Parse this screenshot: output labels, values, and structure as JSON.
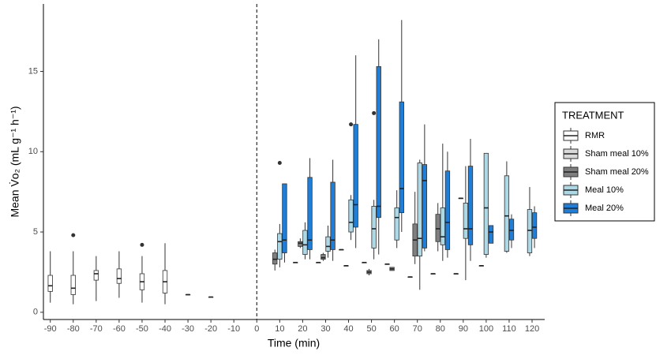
{
  "chart_data": {
    "type": "boxplot",
    "x_label": "Time (min)",
    "y_label": "Mean V̇o₂ (mL g⁻¹ h⁻¹)",
    "legend_title": "TREATMENT",
    "legend_position": "right",
    "xlim": [
      -93,
      125.5
    ],
    "ylim": [
      -0.45,
      19.2
    ],
    "xticks": [
      -90,
      -80,
      -70,
      -60,
      -50,
      -40,
      -30,
      -20,
      -10,
      0,
      10,
      20,
      30,
      40,
      50,
      60,
      70,
      80,
      90,
      100,
      110,
      120
    ],
    "yticks": [
      0,
      5,
      10,
      15
    ],
    "vline": 0,
    "series": [
      {
        "name": "RMR",
        "color": "#ffffff",
        "boxes": [
          {
            "x": -90,
            "min": 0.6,
            "q1": 1.3,
            "median": 1.65,
            "q3": 2.3,
            "max": 3.8
          },
          {
            "x": -80,
            "min": 0.5,
            "q1": 1.1,
            "median": 1.5,
            "q3": 2.3,
            "max": 3.8,
            "outliers": [
              4.8
            ]
          },
          {
            "x": -70,
            "min": 0.7,
            "q1": 2.0,
            "median": 2.4,
            "q3": 2.6,
            "max": 3.5
          },
          {
            "x": -60,
            "min": 0.9,
            "q1": 1.8,
            "median": 2.1,
            "q3": 2.7,
            "max": 3.8
          },
          {
            "x": -50,
            "min": 0.6,
            "q1": 1.4,
            "median": 1.9,
            "q3": 2.4,
            "max": 3.5,
            "outliers": [
              4.2
            ]
          },
          {
            "x": -40,
            "min": 0.5,
            "q1": 1.2,
            "median": 1.9,
            "q3": 2.6,
            "max": 4.3
          },
          {
            "x": -30,
            "min": 1.1,
            "q1": 1.1,
            "median": 1.1,
            "q3": 1.1,
            "max": 1.1
          },
          {
            "x": -20,
            "min": 0.95,
            "q1": 0.95,
            "median": 0.95,
            "q3": 0.95,
            "max": 0.95
          }
        ]
      },
      {
        "name": "Sham meal 10%",
        "color": "#d9d9d9",
        "boxes": [
          {
            "x": 20,
            "min": 3.1,
            "q1": 3.1,
            "median": 3.1,
            "q3": 3.1,
            "max": 3.1
          },
          {
            "x": 30,
            "min": 3.1,
            "q1": 3.1,
            "median": 3.1,
            "q3": 3.1,
            "max": 3.1
          },
          {
            "x": 40,
            "min": 3.9,
            "q1": 3.9,
            "median": 3.9,
            "q3": 3.9,
            "max": 3.9
          },
          {
            "x": 50,
            "min": 3.1,
            "q1": 3.1,
            "median": 3.1,
            "q3": 3.1,
            "max": 3.1
          },
          {
            "x": 60,
            "min": 3.0,
            "q1": 3.0,
            "median": 3.0,
            "q3": 3.0,
            "max": 3.0
          },
          {
            "x": 70,
            "min": 2.2,
            "q1": 2.2,
            "median": 2.2,
            "q3": 2.2,
            "max": 2.2
          },
          {
            "x": 80,
            "min": 2.4,
            "q1": 2.4,
            "median": 2.4,
            "q3": 2.4,
            "max": 2.4
          },
          {
            "x": 90,
            "min": 2.4,
            "q1": 2.4,
            "median": 2.4,
            "q3": 2.4,
            "max": 2.4
          },
          {
            "x": 100,
            "min": 2.9,
            "q1": 2.9,
            "median": 2.9,
            "q3": 2.9,
            "max": 2.9
          }
        ]
      },
      {
        "name": "Sham meal 20%",
        "color": "#7f7f7f",
        "boxes": [
          {
            "x": 10,
            "min": 2.6,
            "q1": 3.0,
            "median": 3.3,
            "q3": 3.7,
            "max": 3.9
          },
          {
            "x": 20,
            "min": 4.0,
            "q1": 4.1,
            "median": 4.3,
            "q3": 4.4,
            "max": 4.6
          },
          {
            "x": 30,
            "min": 3.2,
            "q1": 3.3,
            "median": 3.4,
            "q3": 3.6,
            "max": 3.7
          },
          {
            "x": 40,
            "min": 2.9,
            "q1": 2.9,
            "median": 2.9,
            "q3": 2.9,
            "max": 2.9
          },
          {
            "x": 50,
            "min": 2.3,
            "q1": 2.4,
            "median": 2.5,
            "q3": 2.6,
            "max": 2.7
          },
          {
            "x": 60,
            "min": 2.6,
            "q1": 2.6,
            "median": 2.7,
            "q3": 2.8,
            "max": 2.8
          },
          {
            "x": 70,
            "min": 3.0,
            "q1": 3.5,
            "median": 4.5,
            "q3": 5.5,
            "max": 7.5
          },
          {
            "x": 80,
            "min": 3.8,
            "q1": 4.4,
            "median": 5.2,
            "q3": 6.1,
            "max": 6.8
          },
          {
            "x": 90,
            "min": 7.1,
            "q1": 7.1,
            "median": 7.1,
            "q3": 7.1,
            "max": 7.1
          }
        ]
      },
      {
        "name": "Meal 10%",
        "color": "#add8e6",
        "boxes": [
          {
            "x": 10,
            "min": 2.8,
            "q1": 3.3,
            "median": 4.4,
            "q3": 4.9,
            "max": 5.5,
            "outliers": [
              9.3
            ]
          },
          {
            "x": 20,
            "min": 3.3,
            "q1": 3.6,
            "median": 4.2,
            "q3": 5.1,
            "max": 5.6
          },
          {
            "x": 30,
            "min": 3.4,
            "q1": 3.8,
            "median": 4.1,
            "q3": 4.7,
            "max": 5.4
          },
          {
            "x": 40,
            "min": 4.5,
            "q1": 5.0,
            "median": 5.6,
            "q3": 7.0,
            "max": 7.3,
            "outliers": [
              11.7
            ]
          },
          {
            "x": 50,
            "min": 3.3,
            "q1": 4.0,
            "median": 5.2,
            "q3": 6.6,
            "max": 7.0,
            "outliers": [
              12.4
            ]
          },
          {
            "x": 60,
            "min": 4.0,
            "q1": 4.5,
            "median": 5.9,
            "q3": 6.5,
            "max": 7.6
          },
          {
            "x": 70,
            "min": 1.4,
            "q1": 3.5,
            "median": 4.6,
            "q3": 9.3,
            "max": 9.5
          },
          {
            "x": 80,
            "min": 3.2,
            "q1": 4.2,
            "median": 4.7,
            "q3": 6.5,
            "max": 10.5
          },
          {
            "x": 90,
            "min": 2.0,
            "q1": 4.6,
            "median": 5.2,
            "q3": 6.8,
            "max": 9.1
          },
          {
            "x": 100,
            "min": 3.4,
            "q1": 3.6,
            "median": 6.5,
            "q3": 9.9,
            "max": 9.9
          },
          {
            "x": 110,
            "min": 3.7,
            "q1": 3.8,
            "median": 6.0,
            "q3": 8.5,
            "max": 9.4
          },
          {
            "x": 120,
            "min": 3.5,
            "q1": 3.7,
            "median": 5.1,
            "q3": 6.4,
            "max": 7.8
          }
        ]
      },
      {
        "name": "Meal 20%",
        "color": "#1e7ed8",
        "boxes": [
          {
            "x": 10,
            "min": 3.1,
            "q1": 3.7,
            "median": 4.5,
            "q3": 8.0,
            "max": 8.0
          },
          {
            "x": 20,
            "min": 3.3,
            "q1": 3.9,
            "median": 4.5,
            "q3": 8.4,
            "max": 9.6
          },
          {
            "x": 30,
            "min": 3.2,
            "q1": 3.9,
            "median": 4.5,
            "q3": 8.1,
            "max": 9.5
          },
          {
            "x": 40,
            "min": 4.0,
            "q1": 5.3,
            "median": 6.7,
            "q3": 11.7,
            "max": 16.0
          },
          {
            "x": 50,
            "min": 3.6,
            "q1": 5.9,
            "median": 6.6,
            "q3": 15.3,
            "max": 17.0
          },
          {
            "x": 60,
            "min": 5.0,
            "q1": 6.2,
            "median": 7.7,
            "q3": 13.1,
            "max": 18.2
          },
          {
            "x": 70,
            "min": 3.8,
            "q1": 4.0,
            "median": 8.2,
            "q3": 9.2,
            "max": 11.7
          },
          {
            "x": 80,
            "min": 3.4,
            "q1": 3.9,
            "median": 5.6,
            "q3": 8.8,
            "max": 10.0
          },
          {
            "x": 90,
            "min": 3.2,
            "q1": 4.2,
            "median": 5.2,
            "q3": 9.1,
            "max": 10.8
          },
          {
            "x": 100,
            "min": 4.3,
            "q1": 4.3,
            "median": 5.0,
            "q3": 5.4,
            "max": 5.4
          },
          {
            "x": 110,
            "min": 4.0,
            "q1": 4.5,
            "median": 5.1,
            "q3": 5.8,
            "max": 6.1
          },
          {
            "x": 120,
            "min": 4.0,
            "q1": 4.6,
            "median": 5.3,
            "q3": 6.2,
            "max": 6.6
          }
        ]
      }
    ]
  }
}
